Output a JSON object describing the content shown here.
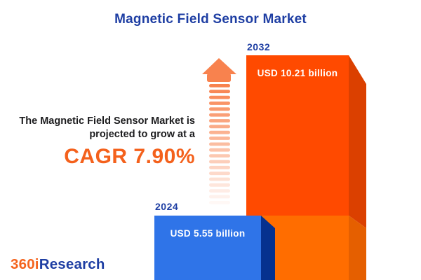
{
  "title": "Magnetic Field Sensor Market",
  "description": {
    "line1": "The Magnetic Field Sensor Market is",
    "line2": "projected to grow at a",
    "cagr": "CAGR 7.90%"
  },
  "logo": {
    "part1": "360i",
    "part2": "Research"
  },
  "chart_data": {
    "type": "bar",
    "title": "Magnetic Field Sensor Market",
    "categories": [
      "2024",
      "2032"
    ],
    "values": [
      5.55,
      10.21
    ],
    "unit": "USD billion",
    "value_labels": [
      "USD 5.55 billion",
      "USD 10.21 billion"
    ],
    "cagr_percent": 7.9,
    "annotation": "The Magnetic Field Sensor Market is projected to grow at a CAGR 7.90%",
    "legend": "none",
    "axes": "none",
    "style": "3d-pictorial-bars-with-growth-arrow"
  },
  "colors": {
    "title_blue": "#1E3EA3",
    "text_dark": "#1C1C1E",
    "cagr_orange": "#F4611C",
    "bar2032_front": "#FF4A00",
    "bar2032_front_light": "#FF6D00",
    "bar2032_side": "#DB4000",
    "bar2032_side_light": "#E55F00",
    "bar2024_front": "#2F74E8",
    "bar2024_side": "#06318F",
    "arrow": "#F8824E",
    "logo_orange": "#F4641E",
    "logo_blue": "#1E3EA3",
    "value_text": "#FFFFFF"
  }
}
